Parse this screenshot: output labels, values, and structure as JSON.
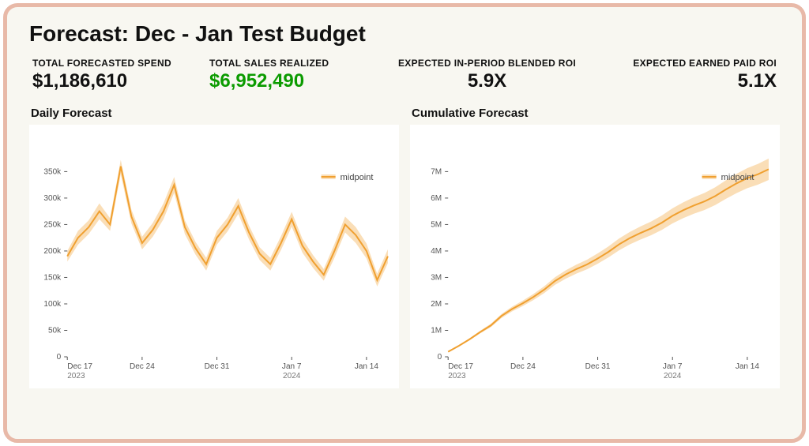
{
  "title": "Forecast: Dec - Jan Test Budget",
  "metrics": [
    {
      "label": "TOTAL FORECASTED SPEND",
      "value": "$1,186,610",
      "color": "#111111"
    },
    {
      "label": "TOTAL SALES REALIZED",
      "value": "$6,952,490",
      "color": "#0b9b00"
    },
    {
      "label": "EXPECTED IN-PERIOD BLENDED ROI",
      "value": "5.9X",
      "color": "#111111"
    },
    {
      "label": "EXPECTED EARNED PAID ROI",
      "value": "5.1X",
      "color": "#111111"
    }
  ],
  "daily_chart": {
    "type": "line-band",
    "title": "Daily Forecast",
    "legend_label": "midpoint",
    "line_color": "#f0a030",
    "band_color": "#f0a030",
    "band_opacity": 0.35,
    "background_color": "#ffffff",
    "axis_color": "#555555",
    "ylim": [
      0,
      370000
    ],
    "yticks": [
      {
        "v": 0,
        "label": "0"
      },
      {
        "v": 50000,
        "label": "50k"
      },
      {
        "v": 100000,
        "label": "100k"
      },
      {
        "v": 150000,
        "label": "150k"
      },
      {
        "v": 200000,
        "label": "200k"
      },
      {
        "v": 250000,
        "label": "250k"
      },
      {
        "v": 300000,
        "label": "300k"
      },
      {
        "v": 350000,
        "label": "350k"
      }
    ],
    "xticks": [
      {
        "i": 0,
        "top": "Dec 17",
        "bottom": "2023"
      },
      {
        "i": 7,
        "top": "Dec 24",
        "bottom": ""
      },
      {
        "i": 14,
        "top": "Dec 31",
        "bottom": ""
      },
      {
        "i": 21,
        "top": "Jan 7",
        "bottom": "2024"
      },
      {
        "i": 28,
        "top": "Jan 14",
        "bottom": ""
      }
    ],
    "n_points": 31,
    "mid": [
      190000,
      225000,
      245000,
      275000,
      250000,
      360000,
      265000,
      215000,
      240000,
      275000,
      325000,
      245000,
      205000,
      175000,
      225000,
      250000,
      285000,
      235000,
      195000,
      175000,
      215000,
      260000,
      210000,
      180000,
      155000,
      200000,
      250000,
      230000,
      200000,
      145000,
      190000
    ],
    "low": [
      180000,
      212000,
      232000,
      260000,
      238000,
      345000,
      252000,
      203000,
      227000,
      260000,
      310000,
      232000,
      193000,
      163000,
      212000,
      237000,
      270000,
      222000,
      183000,
      163000,
      202000,
      246000,
      197000,
      168000,
      144000,
      187000,
      235000,
      215000,
      186000,
      133000,
      177000
    ],
    "high": [
      200000,
      238000,
      258000,
      290000,
      262000,
      372000,
      278000,
      227000,
      253000,
      290000,
      340000,
      258000,
      217000,
      187000,
      238000,
      263000,
      300000,
      248000,
      207000,
      187000,
      228000,
      274000,
      223000,
      192000,
      166000,
      213000,
      265000,
      245000,
      214000,
      157000,
      203000
    ]
  },
  "cumulative_chart": {
    "type": "line-band",
    "title": "Cumulative Forecast",
    "legend_label": "midpoint",
    "line_color": "#f0a030",
    "band_color": "#f0a030",
    "band_opacity": 0.35,
    "background_color": "#ffffff",
    "axis_color": "#555555",
    "ylim": [
      0,
      7400000
    ],
    "yticks": [
      {
        "v": 0,
        "label": "0"
      },
      {
        "v": 1000000,
        "label": "1M"
      },
      {
        "v": 2000000,
        "label": "2M"
      },
      {
        "v": 3000000,
        "label": "3M"
      },
      {
        "v": 4000000,
        "label": "4M"
      },
      {
        "v": 5000000,
        "label": "5M"
      },
      {
        "v": 6000000,
        "label": "6M"
      },
      {
        "v": 7000000,
        "label": "7M"
      }
    ],
    "xticks": [
      {
        "i": 0,
        "top": "Dec 17",
        "bottom": "2023"
      },
      {
        "i": 7,
        "top": "Dec 24",
        "bottom": ""
      },
      {
        "i": 14,
        "top": "Dec 31",
        "bottom": ""
      },
      {
        "i": 21,
        "top": "Jan 7",
        "bottom": "2024"
      },
      {
        "i": 28,
        "top": "Jan 14",
        "bottom": ""
      }
    ],
    "n_points": 31,
    "mid": [
      190000,
      415000,
      660000,
      935000,
      1185000,
      1545000,
      1810000,
      2025000,
      2265000,
      2540000,
      2865000,
      3110000,
      3315000,
      3490000,
      3715000,
      3965000,
      4250000,
      4485000,
      4680000,
      4855000,
      5070000,
      5330000,
      5540000,
      5720000,
      5875000,
      6075000,
      6325000,
      6555000,
      6755000,
      6900000,
      7090000
    ],
    "low": [
      180000,
      392000,
      624000,
      884000,
      1122000,
      1467000,
      1719000,
      1922000,
      2149000,
      2409000,
      2719000,
      2951000,
      3144000,
      3307000,
      3519000,
      3756000,
      4026000,
      4248000,
      4431000,
      4594000,
      4796000,
      5042000,
      5239000,
      5407000,
      5551000,
      5738000,
      5973000,
      6188000,
      6374000,
      6507000,
      6684000
    ],
    "high": [
      200000,
      438000,
      696000,
      986000,
      1248000,
      1620000,
      1898000,
      2125000,
      2378000,
      2668000,
      3008000,
      3266000,
      3483000,
      3670000,
      3908000,
      4171000,
      4471000,
      4719000,
      4926000,
      5113000,
      5341000,
      5615000,
      5838000,
      6030000,
      6196000,
      6409000,
      6674000,
      6919000,
      7133000,
      7290000,
      7493000
    ]
  }
}
